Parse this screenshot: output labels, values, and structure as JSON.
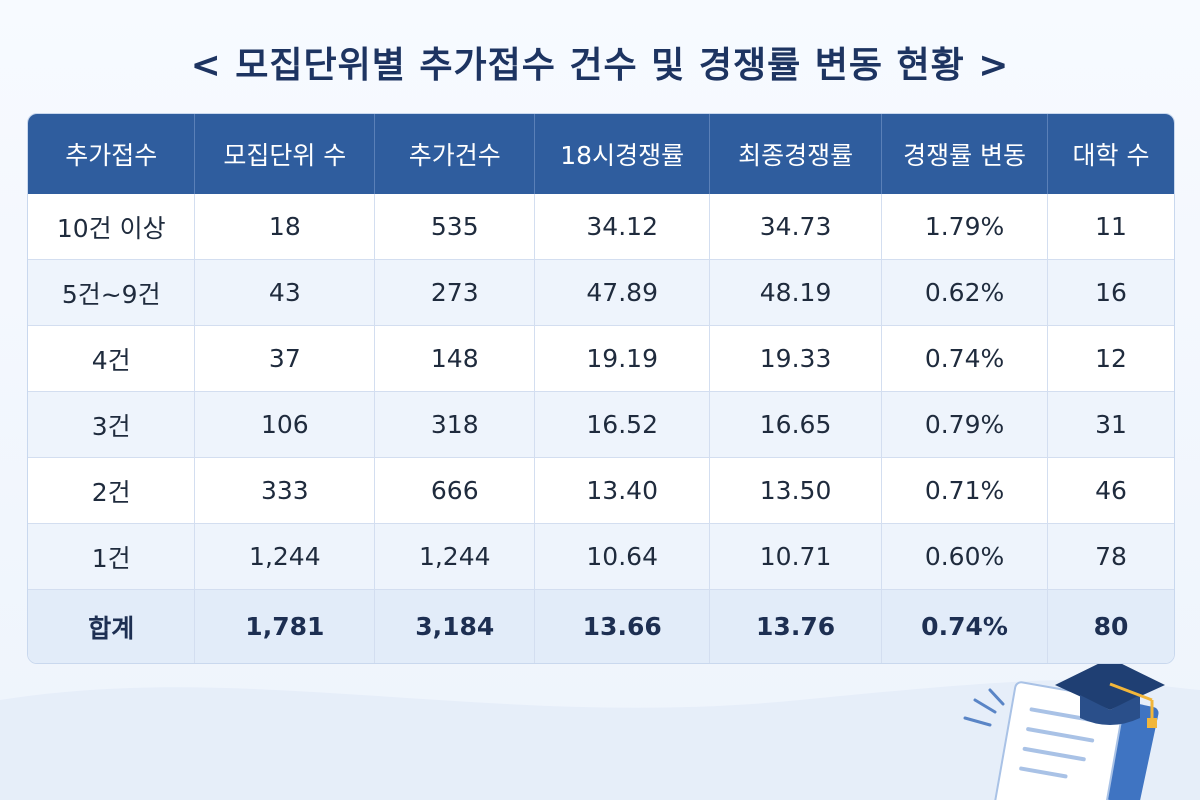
{
  "title": "< 모집단위별 추가접수 건수 및 경쟁률 변동 현황 >",
  "table": {
    "headers": [
      "추가접수",
      "모집단위 수",
      "추가건수",
      "18시경쟁률",
      "최종경쟁률",
      "경쟁률 변동",
      "대학 수"
    ],
    "rows": [
      [
        "10건 이상",
        "18",
        "535",
        "34.12",
        "34.73",
        "1.79%",
        "11"
      ],
      [
        "5건~9건",
        "43",
        "273",
        "47.89",
        "48.19",
        "0.62%",
        "16"
      ],
      [
        "4건",
        "37",
        "148",
        "19.19",
        "19.33",
        "0.74%",
        "12"
      ],
      [
        "3건",
        "106",
        "318",
        "16.52",
        "16.65",
        "0.79%",
        "31"
      ],
      [
        "2건",
        "333",
        "666",
        "13.40",
        "13.50",
        "0.71%",
        "46"
      ],
      [
        "1건",
        "1,244",
        "1,244",
        "10.64",
        "10.71",
        "0.60%",
        "78"
      ]
    ],
    "total": [
      "합계",
      "1,781",
      "3,184",
      "13.66",
      "13.76",
      "0.74%",
      "80"
    ]
  }
}
